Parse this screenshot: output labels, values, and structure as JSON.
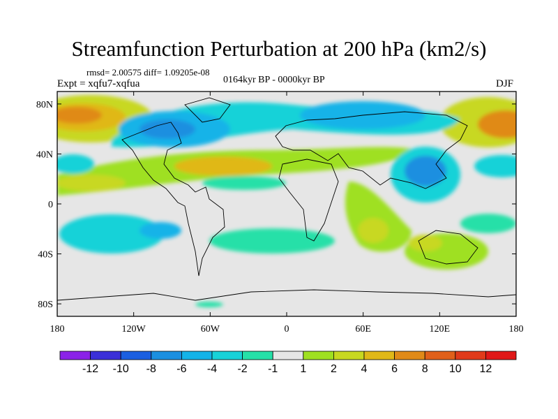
{
  "title": "Streamfunction Perturbation at 200 hPa (km2/s)",
  "stats": "rmsd= 2.00575 diff= 1.09205e-08",
  "experiment": "Expt = xqfu7-xqfua",
  "period": "0164kyr BP - 0000kyr BP",
  "season": "DJF",
  "x_ticks": [
    "180",
    "120W",
    "60W",
    "0",
    "60E",
    "120E",
    "180"
  ],
  "y_ticks": [
    "80N",
    "40N",
    "0",
    "40S",
    "80S"
  ],
  "colorbar": {
    "labels": [
      "-12",
      "-10",
      "-8",
      "-6",
      "-4",
      "-2",
      "-1",
      "1",
      "2",
      "4",
      "6",
      "8",
      "10",
      "12"
    ],
    "colors": [
      "#8b22e8",
      "#3b2fd8",
      "#1b5fe0",
      "#1b8fe0",
      "#14b3e8",
      "#18d2d8",
      "#25e0a8",
      "#e6e6e6",
      "#9fe020",
      "#c8d820",
      "#e0b818",
      "#e08a18",
      "#e0601a",
      "#e03a1a",
      "#e01818"
    ]
  }
}
